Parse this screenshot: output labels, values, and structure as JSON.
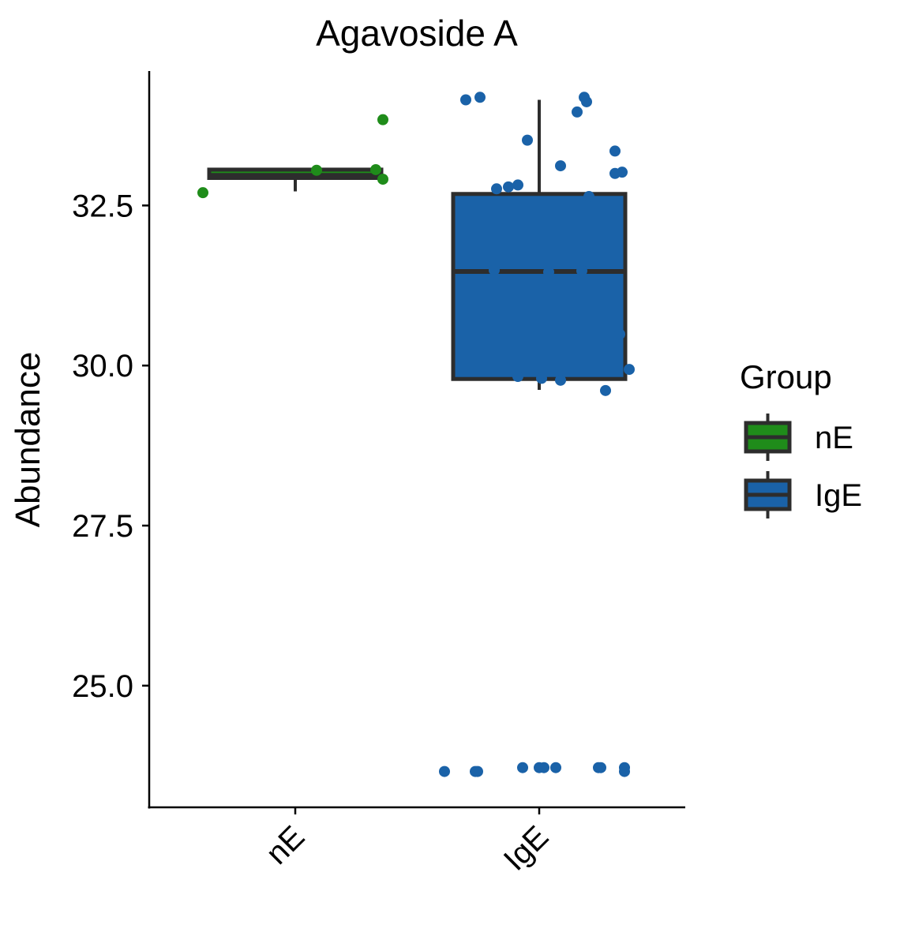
{
  "chart_data": {
    "type": "box",
    "title": "Agavoside A",
    "xlabel": "",
    "ylabel": "Abundance",
    "categories": [
      "nE",
      "IgE"
    ],
    "ylim": [
      23.1,
      34.6
    ],
    "yticks": [
      25.0,
      27.5,
      30.0,
      32.5
    ],
    "ytick_labels": [
      "25.0",
      "27.5",
      "30.0",
      "32.5"
    ],
    "grid": false,
    "legend": {
      "title": "Group",
      "position": "right",
      "entries": [
        {
          "label": "nE",
          "color": "#1f8c1a"
        },
        {
          "label": "IgE",
          "color": "#1a62a8"
        }
      ]
    },
    "series": [
      {
        "name": "nE",
        "color": "#1f8c1a",
        "box": {
          "whisker_low": 32.72,
          "q1": 32.93,
          "median": 32.97,
          "q3": 33.06,
          "whisker_high": 33.06
        },
        "points": [
          {
            "x": -0.39,
            "y": 32.7
          },
          {
            "x": 0.09,
            "y": 33.05
          },
          {
            "x": 0.34,
            "y": 33.06
          },
          {
            "x": 0.37,
            "y": 32.91
          },
          {
            "x": 0.37,
            "y": 33.84
          }
        ]
      },
      {
        "name": "IgE",
        "color": "#1a62a8",
        "box": {
          "whisker_low": 29.62,
          "q1": 29.79,
          "median": 31.47,
          "q3": 32.68,
          "whisker_high": 34.15
        },
        "points": [
          {
            "x": -0.31,
            "y": 34.15
          },
          {
            "x": -0.25,
            "y": 34.19
          },
          {
            "x": -0.18,
            "y": 32.76
          },
          {
            "x": -0.13,
            "y": 32.79
          },
          {
            "x": -0.09,
            "y": 32.82
          },
          {
            "x": -0.05,
            "y": 33.52
          },
          {
            "x": 0.09,
            "y": 33.12
          },
          {
            "x": 0.16,
            "y": 33.96
          },
          {
            "x": 0.19,
            "y": 34.19
          },
          {
            "x": 0.2,
            "y": 34.12
          },
          {
            "x": 0.32,
            "y": 33.35
          },
          {
            "x": 0.32,
            "y": 33.0
          },
          {
            "x": 0.35,
            "y": 33.02
          },
          {
            "x": -0.19,
            "y": 31.49
          },
          {
            "x": 0.04,
            "y": 31.46
          },
          {
            "x": 0.18,
            "y": 31.48
          },
          {
            "x": 0.21,
            "y": 32.64
          },
          {
            "x": 0.34,
            "y": 30.49
          },
          {
            "x": 0.38,
            "y": 29.94
          },
          {
            "x": -0.09,
            "y": 29.83
          },
          {
            "x": 0.01,
            "y": 29.8
          },
          {
            "x": 0.09,
            "y": 29.77
          },
          {
            "x": 0.28,
            "y": 29.61
          },
          {
            "x": -0.4,
            "y": 23.66
          },
          {
            "x": -0.27,
            "y": 23.66
          },
          {
            "x": -0.26,
            "y": 23.66
          },
          {
            "x": -0.07,
            "y": 23.72
          },
          {
            "x": 0.0,
            "y": 23.72
          },
          {
            "x": 0.02,
            "y": 23.72
          },
          {
            "x": 0.07,
            "y": 23.72
          },
          {
            "x": 0.25,
            "y": 23.72
          },
          {
            "x": 0.26,
            "y": 23.72
          },
          {
            "x": 0.36,
            "y": 23.72
          },
          {
            "x": 0.36,
            "y": 23.66
          }
        ]
      }
    ]
  }
}
